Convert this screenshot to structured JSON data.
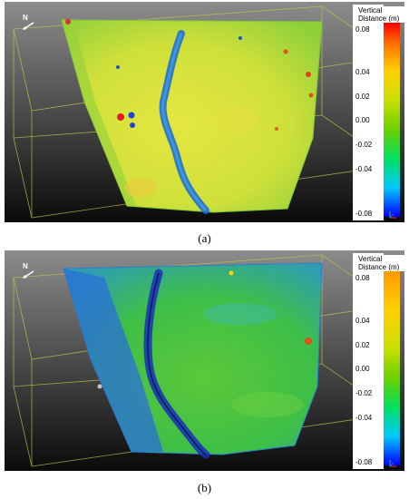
{
  "figure": {
    "panels": [
      {
        "id": "a",
        "caption": "(a)",
        "compass_label": "N",
        "colorbar": {
          "title": "Vertical Distance (m)",
          "ticks": [
            "0.08",
            "0.04",
            "0.02",
            "0.00",
            "-0.02",
            "-0.04",
            "-0.08"
          ],
          "colors": [
            "#0000ff",
            "#00c8ff",
            "#00e060",
            "#6cd000",
            "#c8e000",
            "#ffd000",
            "#ff7a00",
            "#ff0000"
          ]
        },
        "surface_colors": {
          "base": "#d7e33a",
          "crack": "#1060d0",
          "edge": "#9ad23a"
        }
      },
      {
        "id": "b",
        "caption": "(b)",
        "compass_label": "N",
        "colorbar": {
          "title": "Vertical Distance (m)",
          "ticks": [
            "0.08",
            "0.04",
            "0.02",
            "0.00",
            "-0.02",
            "-0.04",
            "-0.08"
          ],
          "colors": [
            "#0000ff",
            "#00c8ff",
            "#00e060",
            "#6cd000",
            "#c8e000",
            "#ffd000",
            "#ff9a00"
          ]
        },
        "surface_colors": {
          "base": "#3fbf3f",
          "crack": "#1a3fc8",
          "edge": "#2a8fd0"
        }
      }
    ]
  }
}
